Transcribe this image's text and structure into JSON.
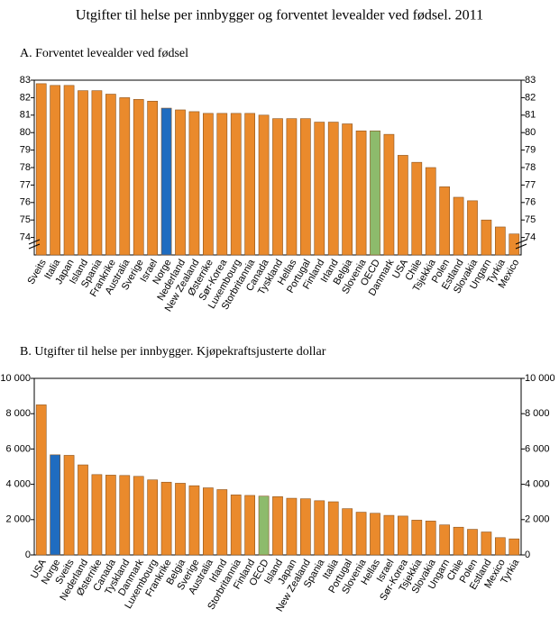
{
  "title": "Utgifter til helse per innbygger og forventet levealder ved fødsel. 2011",
  "chart_data": [
    {
      "type": "bar",
      "title": "A.  Forventet levealder ved fødsel",
      "categories": [
        "Sveits",
        "Italia",
        "Japan",
        "Island",
        "Spania",
        "Frankrike",
        "Australia",
        "Sverige",
        "Israel",
        "Norge",
        "Nederland",
        "New Zealand",
        "Østerrike",
        "Sør-Korea",
        "Luxembourg",
        "Storbritannia",
        "Canada",
        "Tyskland",
        "Hellas",
        "Portugal",
        "Finland",
        "Irland",
        "Belgia",
        "Slovenia",
        "OECD",
        "Danmark",
        "USA",
        "Chile",
        "Tsjekkia",
        "Polen",
        "Estland",
        "Slovakia",
        "Ungarn",
        "Tyrkia",
        "Mexico"
      ],
      "values": [
        82.8,
        82.7,
        82.7,
        82.4,
        82.4,
        82.2,
        82.0,
        81.9,
        81.8,
        81.4,
        81.3,
        81.2,
        81.1,
        81.1,
        81.1,
        81.1,
        81.0,
        80.8,
        80.8,
        80.8,
        80.6,
        80.6,
        80.5,
        80.1,
        80.1,
        79.9,
        78.7,
        78.3,
        78.0,
        76.9,
        76.3,
        76.1,
        75.0,
        74.6,
        74.2
      ],
      "color": "#ea8a2c",
      "highlight_colors": {
        "Norge": "#1f6cc0",
        "OECD": "#8dbb6c"
      },
      "ylim": [
        73,
        83
      ],
      "yticks": [
        74,
        75,
        76,
        77,
        78,
        79,
        80,
        81,
        82,
        83
      ],
      "axis_break": true,
      "grid": false
    },
    {
      "type": "bar",
      "title": "B.  Utgifter til helse per innbygger. Kjøpekraftsjusterte dollar",
      "categories": [
        "USA",
        "Norge",
        "Sveits",
        "Nederland",
        "Østerrike",
        "Canada",
        "Tyskland",
        "Danmark",
        "Luxembourg",
        "Frankrike",
        "Belgia",
        "Sverige",
        "Australia",
        "Irland",
        "Storbritannia",
        "Finland",
        "OECD",
        "Island",
        "Japan",
        "New Zealand",
        "Spania",
        "Italia",
        "Portugal",
        "Slovenia",
        "Hellas",
        "Israel",
        "Sør-Korea",
        "Tsjekkia",
        "Slovakia",
        "Ungarn",
        "Chile",
        "Polen",
        "Estland",
        "Mexico",
        "Tyrkia"
      ],
      "values": [
        8500,
        5670,
        5640,
        5100,
        4550,
        4520,
        4500,
        4450,
        4250,
        4120,
        4060,
        3920,
        3800,
        3700,
        3400,
        3370,
        3330,
        3300,
        3210,
        3180,
        3070,
        3010,
        2620,
        2420,
        2360,
        2240,
        2200,
        1970,
        1920,
        1700,
        1570,
        1450,
        1300,
        980,
        910
      ],
      "color": "#ea8a2c",
      "highlight_colors": {
        "Norge": "#1f6cc0",
        "OECD": "#8dbb6c"
      },
      "ylim": [
        0,
        10000
      ],
      "yticks": [
        0,
        {
          "value": 2000,
          "label": "2 000"
        },
        {
          "value": 4000,
          "label": "4 000"
        },
        {
          "value": 6000,
          "label": "6 000"
        },
        {
          "value": 8000,
          "label": "8 000"
        },
        {
          "value": 10000,
          "label": "10 000"
        }
      ],
      "axis_break": false,
      "grid": false
    }
  ]
}
